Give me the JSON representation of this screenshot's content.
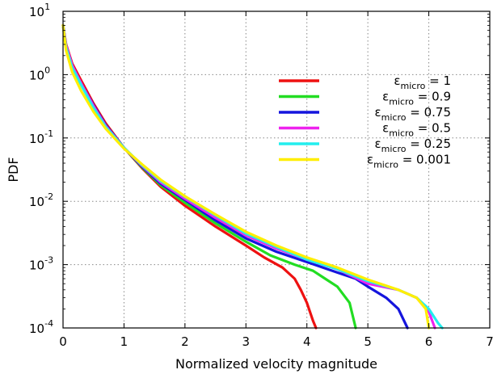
{
  "chart_data": {
    "type": "line",
    "xlabel": "Normalized velocity magnitude",
    "ylabel": "PDF",
    "xlim": [
      0,
      7
    ],
    "ylim": [
      0.0001,
      10
    ],
    "yscale": "log",
    "grid": true,
    "legend_position": "top-right",
    "x_ticks": [
      "0",
      "1",
      "2",
      "3",
      "4",
      "5",
      "6",
      "7"
    ],
    "y_ticks": [
      {
        "base": "10",
        "exp": "1"
      },
      {
        "base": "10",
        "exp": "0"
      },
      {
        "base": "10",
        "exp": "-1"
      },
      {
        "base": "10",
        "exp": "-2"
      },
      {
        "base": "10",
        "exp": "-3"
      },
      {
        "base": "10",
        "exp": "-4"
      }
    ],
    "series": [
      {
        "name": "1",
        "symbol": "ε",
        "subscript": "micro",
        "color": "#ee1111",
        "points": [
          [
            0,
            6.0
          ],
          [
            0.05,
            3.0
          ],
          [
            0.15,
            1.5
          ],
          [
            0.3,
            0.8
          ],
          [
            0.5,
            0.35
          ],
          [
            0.7,
            0.17
          ],
          [
            1.0,
            0.07
          ],
          [
            1.3,
            0.033
          ],
          [
            1.6,
            0.017
          ],
          [
            2.0,
            0.0085
          ],
          [
            2.5,
            0.004
          ],
          [
            3.0,
            0.002
          ],
          [
            3.3,
            0.0013
          ],
          [
            3.6,
            0.0009
          ],
          [
            3.8,
            0.0006
          ],
          [
            3.9,
            0.0004
          ],
          [
            4.0,
            0.00025
          ],
          [
            4.1,
            0.00013
          ],
          [
            4.15,
            0.0001
          ]
        ]
      },
      {
        "name": "0.9",
        "symbol": "ε",
        "subscript": "micro",
        "color": "#22dd22",
        "points": [
          [
            0,
            6.0
          ],
          [
            0.05,
            2.6
          ],
          [
            0.15,
            1.3
          ],
          [
            0.3,
            0.7
          ],
          [
            0.5,
            0.32
          ],
          [
            0.7,
            0.16
          ],
          [
            1.0,
            0.07
          ],
          [
            1.3,
            0.034
          ],
          [
            1.6,
            0.018
          ],
          [
            2.0,
            0.0095
          ],
          [
            2.5,
            0.0045
          ],
          [
            3.0,
            0.0023
          ],
          [
            3.4,
            0.0014
          ],
          [
            3.8,
            0.001
          ],
          [
            4.1,
            0.0008
          ],
          [
            4.3,
            0.0006
          ],
          [
            4.5,
            0.00045
          ],
          [
            4.7,
            0.00025
          ],
          [
            4.8,
            0.0001
          ]
        ]
      },
      {
        "name": "0.75",
        "symbol": "ε",
        "subscript": "micro",
        "color": "#1515dd",
        "points": [
          [
            0,
            6.0
          ],
          [
            0.05,
            2.8
          ],
          [
            0.15,
            1.4
          ],
          [
            0.3,
            0.72
          ],
          [
            0.5,
            0.33
          ],
          [
            0.7,
            0.16
          ],
          [
            1.0,
            0.07
          ],
          [
            1.3,
            0.035
          ],
          [
            1.6,
            0.019
          ],
          [
            2.0,
            0.0105
          ],
          [
            2.5,
            0.005
          ],
          [
            3.0,
            0.0026
          ],
          [
            3.5,
            0.0016
          ],
          [
            4.0,
            0.0011
          ],
          [
            4.5,
            0.00075
          ],
          [
            4.8,
            0.0006
          ],
          [
            5.0,
            0.00045
          ],
          [
            5.3,
            0.0003
          ],
          [
            5.5,
            0.0002
          ],
          [
            5.65,
            0.0001
          ]
        ]
      },
      {
        "name": "0.5",
        "symbol": "ε",
        "subscript": "micro",
        "color": "#ee22ee",
        "points": [
          [
            0,
            6.0
          ],
          [
            0.05,
            2.9
          ],
          [
            0.15,
            1.4
          ],
          [
            0.3,
            0.72
          ],
          [
            0.5,
            0.32
          ],
          [
            0.7,
            0.155
          ],
          [
            1.0,
            0.07
          ],
          [
            1.3,
            0.036
          ],
          [
            1.6,
            0.02
          ],
          [
            2.0,
            0.011
          ],
          [
            2.5,
            0.0055
          ],
          [
            3.0,
            0.0029
          ],
          [
            3.5,
            0.0018
          ],
          [
            4.0,
            0.0012
          ],
          [
            4.5,
            0.00085
          ],
          [
            5.0,
            0.0005
          ],
          [
            5.5,
            0.0004
          ],
          [
            5.8,
            0.0003
          ],
          [
            6.0,
            0.00018
          ],
          [
            6.1,
            0.0001
          ]
        ]
      },
      {
        "name": "0.25",
        "symbol": "ε",
        "subscript": "micro",
        "color": "#22eeee",
        "points": [
          [
            0,
            6.0
          ],
          [
            0.05,
            2.7
          ],
          [
            0.15,
            1.3
          ],
          [
            0.3,
            0.68
          ],
          [
            0.5,
            0.3
          ],
          [
            0.7,
            0.15
          ],
          [
            1.0,
            0.07
          ],
          [
            1.3,
            0.037
          ],
          [
            1.6,
            0.021
          ],
          [
            2.0,
            0.0118
          ],
          [
            2.5,
            0.006
          ],
          [
            3.0,
            0.0031
          ],
          [
            3.5,
            0.0019
          ],
          [
            4.0,
            0.0012
          ],
          [
            4.5,
            0.00085
          ],
          [
            5.0,
            0.00055
          ],
          [
            5.5,
            0.0004
          ],
          [
            5.8,
            0.0003
          ],
          [
            6.0,
            0.0002
          ],
          [
            6.15,
            0.00012
          ],
          [
            6.22,
            0.0001
          ]
        ]
      },
      {
        "name": "0.001",
        "symbol": "ε",
        "subscript": "micro",
        "color": "#ffee00",
        "points": [
          [
            0,
            6.0
          ],
          [
            0.05,
            2.4
          ],
          [
            0.15,
            1.1
          ],
          [
            0.3,
            0.55
          ],
          [
            0.5,
            0.26
          ],
          [
            0.7,
            0.14
          ],
          [
            1.0,
            0.068
          ],
          [
            1.3,
            0.038
          ],
          [
            1.6,
            0.022
          ],
          [
            2.0,
            0.012
          ],
          [
            2.5,
            0.0062
          ],
          [
            3.0,
            0.0033
          ],
          [
            3.5,
            0.002
          ],
          [
            4.0,
            0.0013
          ],
          [
            4.5,
            0.0009
          ],
          [
            5.0,
            0.00058
          ],
          [
            5.5,
            0.0004
          ],
          [
            5.8,
            0.0003
          ],
          [
            5.95,
            0.0002
          ],
          [
            6.0,
            0.0001
          ]
        ]
      }
    ]
  }
}
